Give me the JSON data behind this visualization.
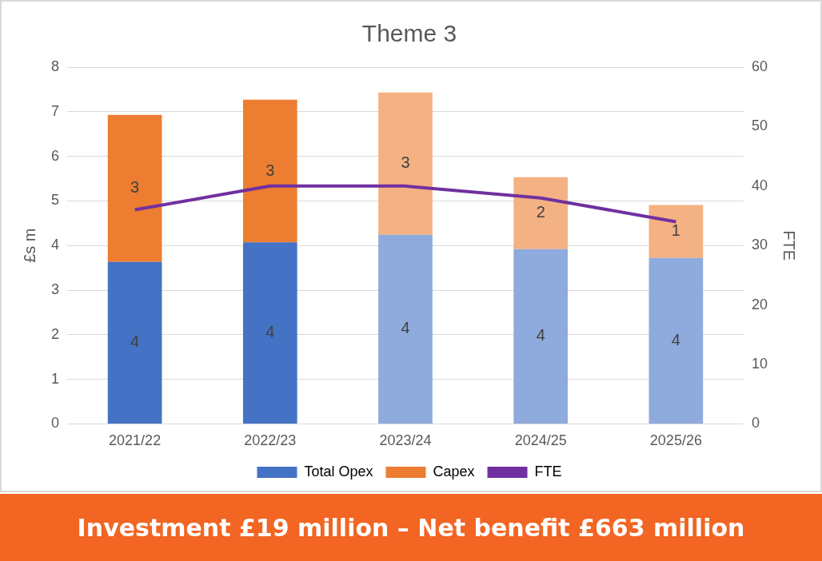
{
  "chart_data": {
    "type": "bar",
    "title": "Theme 3",
    "categories": [
      "2021/22",
      "2022/23",
      "2023/24",
      "2024/25",
      "2025/26"
    ],
    "series": [
      {
        "name": "Total Opex",
        "color": "#4472c4",
        "colors": [
          "#4472c4",
          "#4472c4",
          "#8faadc",
          "#8faadc",
          "#8faadc"
        ],
        "values": [
          3.63,
          4.07,
          4.24,
          3.92,
          3.72
        ],
        "value_labels": [
          "4",
          "4",
          "4",
          "4",
          "4"
        ]
      },
      {
        "name": "Capex",
        "color": "#ed7d31",
        "colors": [
          "#ed7d31",
          "#ed7d31",
          "#f4b183",
          "#f4b183",
          "#f4b183"
        ],
        "values": [
          3.3,
          3.2,
          3.19,
          1.61,
          1.19
        ],
        "value_labels": [
          "3",
          "3",
          "3",
          "2",
          "1"
        ]
      },
      {
        "name": "FTE",
        "type": "line",
        "axis": "y2",
        "color": "#7030a0",
        "values": [
          36,
          40,
          40,
          38,
          34
        ]
      }
    ],
    "stacked": true,
    "ylabel": "£s m",
    "y2label": "FTE",
    "ylim": [
      0,
      8
    ],
    "yticks": [
      0,
      1,
      2,
      3,
      4,
      5,
      6,
      7,
      8
    ],
    "y2lim": [
      0,
      60
    ],
    "y2ticks": [
      0,
      10,
      20,
      30,
      40,
      50,
      60
    ],
    "grid": "y",
    "legend": "bottom",
    "marker": "none",
    "annotations": [
      "Investment £19 million – Net benefit £663 million"
    ]
  }
}
